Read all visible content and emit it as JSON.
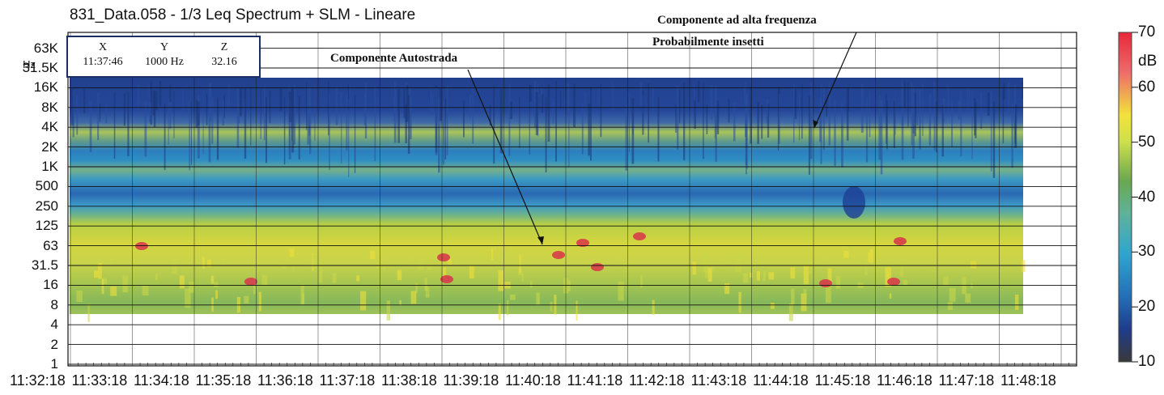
{
  "window": {
    "title": "831_Data.058 - 1/3 Leq Spectrum + SLM - Lineare"
  },
  "cursor": {
    "x_label": "X",
    "x_value": "11:37:46",
    "y_label": "Y",
    "y_value": "1000 Hz",
    "z_label": "Z",
    "z_value": "32.16"
  },
  "annotations": {
    "high_frequency": "Componente ad alta frequenza",
    "insects": "Probabilmente insetti",
    "motorway": "Componente Autostrada"
  },
  "colors": {
    "background": "#ffffff",
    "grid": "#111111",
    "cursor_box_border": "#1a2f63",
    "colorbar_low": "#3a3a3a",
    "colorbar_blue": "#1f3c8c",
    "colorbar_cyan": "#2fa6cf",
    "colorbar_green": "#6aa84f",
    "colorbar_yellow": "#f2e23a",
    "colorbar_red": "#e8283a"
  },
  "chart_data": {
    "type": "heatmap",
    "x_ticks": [
      "11:32:18",
      "11:33:18",
      "11:34:18",
      "11:35:18",
      "11:36:18",
      "11:37:18",
      "11:38:18",
      "11:39:18",
      "11:40:18",
      "11:41:18",
      "11:42:18",
      "11:43:18",
      "11:44:18",
      "11:45:18",
      "11:46:18",
      "11:47:18",
      "11:48:18"
    ],
    "y_ticks": [
      "1",
      "2",
      "4",
      "8",
      "16",
      "31.5",
      "63",
      "125",
      "250",
      "500",
      "1K",
      "2K",
      "4K",
      "8K",
      "16K",
      "31.5K",
      "63K"
    ],
    "y_unit_label": "Hz",
    "colorbar": {
      "unit": "dB",
      "ticks": [
        10,
        20,
        30,
        40,
        50,
        60,
        70
      ],
      "range": [
        10,
        70
      ]
    },
    "bands": [
      {
        "from_hz": "16K",
        "to_hz": "16K+",
        "level_db": 22
      },
      {
        "from_hz": "4K",
        "to_hz": "16K",
        "level_db": 26
      },
      {
        "from_hz": "2K",
        "to_hz": "4K",
        "level_db": 40
      },
      {
        "from_hz": "1K",
        "to_hz": "2K",
        "level_db": 30
      },
      {
        "from_hz": "500",
        "to_hz": "1K",
        "level_db": 36
      },
      {
        "from_hz": "250",
        "to_hz": "500",
        "level_db": 28
      },
      {
        "from_hz": "125",
        "to_hz": "250",
        "level_db": 33
      },
      {
        "from_hz": "63",
        "to_hz": "125",
        "level_db": 47
      },
      {
        "from_hz": "16",
        "to_hz": "63",
        "level_db": 50
      },
      {
        "from_hz": "6",
        "to_hz": "16",
        "level_db": 44
      }
    ]
  }
}
